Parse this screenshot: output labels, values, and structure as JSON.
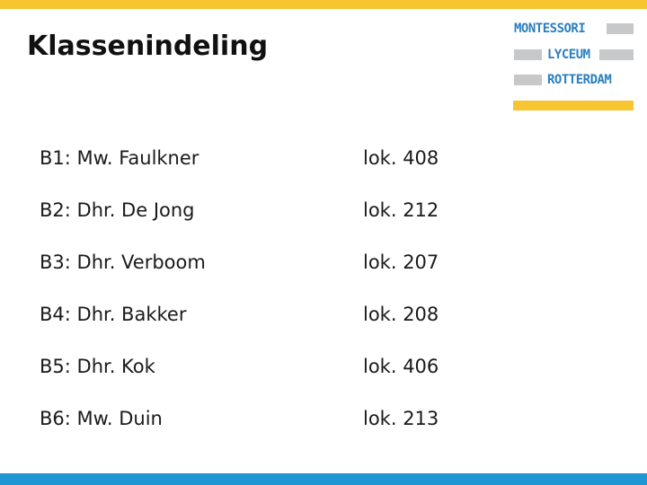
{
  "slide": {
    "title": "Klassenindeling"
  },
  "logo": {
    "lines": [
      "MONTESSORI",
      "LYCEUM",
      "ROTTERDAM"
    ]
  },
  "rows": [
    {
      "class": "B1: Mw. Faulkner",
      "room": "lok. 408"
    },
    {
      "class": "B2: Dhr. De Jong",
      "room": "lok. 212"
    },
    {
      "class": "B3: Dhr. Verboom",
      "room": "lok. 207"
    },
    {
      "class": "B4: Dhr. Bakker",
      "room": "lok. 208"
    },
    {
      "class": "B5: Dhr. Kok",
      "room": "lok. 406"
    },
    {
      "class": "B6: Mw. Duin",
      "room": "lok. 213"
    }
  ],
  "colors": {
    "accent_yellow": "#f6c530",
    "accent_blue": "#1e96d4",
    "logo_text": "#2a7fc0",
    "logo_grey": "#c6c8ca"
  }
}
